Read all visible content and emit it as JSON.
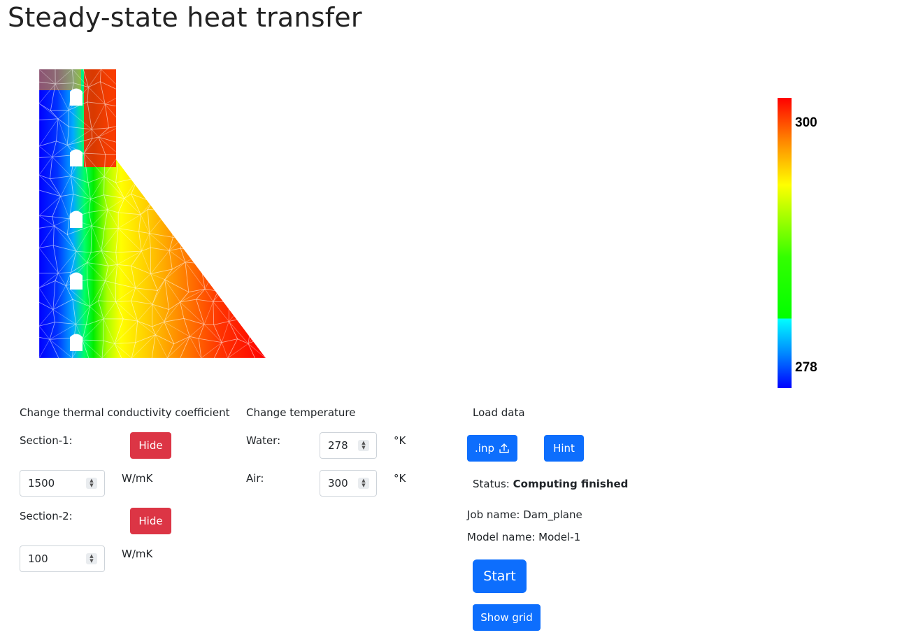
{
  "page": {
    "title": "Steady-state heat transfer"
  },
  "colorbar": {
    "max_label": "300",
    "min_label": "278"
  },
  "conductivity": {
    "heading": "Change thermal conductivity coefficient",
    "section1": {
      "label": "Section-1:",
      "button": "Hide",
      "value": "1500",
      "unit": "W/mK"
    },
    "section2": {
      "label": "Section-2:",
      "button": "Hide",
      "value": "100",
      "unit": "W/mK"
    }
  },
  "temperature": {
    "heading": "Change temperature",
    "water": {
      "label": "Water:",
      "value": "278",
      "unit": "°K"
    },
    "air": {
      "label": "Air:",
      "value": "300",
      "unit": "°K"
    }
  },
  "load": {
    "heading": "Load data",
    "inp_button": ".inp",
    "hint_button": "Hint",
    "status_label": "Status:",
    "status_value": "Computing finished",
    "job_name": "Job name: Dam_plane",
    "model_name": "Model name: Model-1",
    "start_button": "Start",
    "grid_button": "Show grid"
  },
  "colors": {
    "primary": "#0d6efd",
    "danger": "#dc3545"
  },
  "icons": {
    "upload": "upload-icon",
    "spinner": "spinner-arrows-icon"
  }
}
